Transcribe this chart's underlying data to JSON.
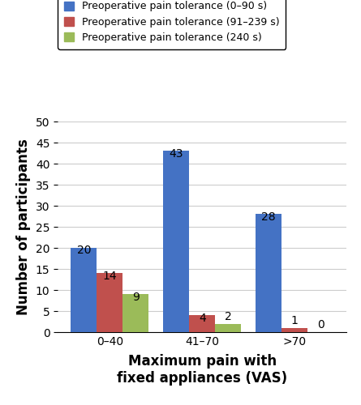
{
  "categories": [
    "0–40",
    "41–70",
    ">70"
  ],
  "series": [
    {
      "label": "Preoperative pain tolerance (0–90 s)",
      "color": "#4472C4",
      "values": [
        20,
        43,
        28
      ]
    },
    {
      "label": "Preoperative pain tolerance (91–239 s)",
      "color": "#C0504D",
      "values": [
        14,
        4,
        1
      ]
    },
    {
      "label": "Preoperative pain tolerance (240 s)",
      "color": "#9BBB59",
      "values": [
        9,
        2,
        0
      ]
    }
  ],
  "ylabel": "Number of participants",
  "xlabel": "Maximum pain with\nfixed appliances (VAS)",
  "ylim": [
    0,
    50
  ],
  "yticks": [
    0,
    5,
    10,
    15,
    20,
    25,
    30,
    35,
    40,
    45,
    50
  ],
  "bar_width": 0.28,
  "annotation_fontsize": 10,
  "label_fontsize": 12,
  "tick_fontsize": 10,
  "legend_fontsize": 9,
  "background_color": "#ffffff"
}
